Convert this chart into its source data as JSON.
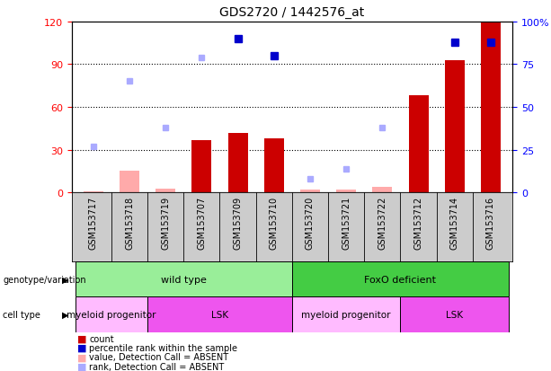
{
  "title": "GDS2720 / 1442576_at",
  "samples": [
    "GSM153717",
    "GSM153718",
    "GSM153719",
    "GSM153707",
    "GSM153709",
    "GSM153710",
    "GSM153720",
    "GSM153721",
    "GSM153722",
    "GSM153712",
    "GSM153714",
    "GSM153716"
  ],
  "count_values": [
    null,
    null,
    null,
    37,
    42,
    38,
    null,
    null,
    null,
    68,
    93,
    120
  ],
  "count_absent": [
    1,
    15,
    3,
    null,
    null,
    null,
    2,
    2,
    4,
    null,
    null,
    null
  ],
  "rank_values": [
    null,
    null,
    null,
    null,
    90,
    80,
    null,
    null,
    null,
    null,
    88,
    88
  ],
  "rank_absent": [
    27,
    65,
    38,
    79,
    null,
    null,
    8,
    14,
    38,
    null,
    null,
    null
  ],
  "ylim_left": [
    0,
    120
  ],
  "ylim_right": [
    0,
    100
  ],
  "yticks_left": [
    0,
    30,
    60,
    90,
    120
  ],
  "yticks_right": [
    0,
    25,
    50,
    75,
    100
  ],
  "yticklabels_left": [
    "0",
    "30",
    "60",
    "90",
    "120"
  ],
  "yticklabels_right": [
    "0",
    "25",
    "50",
    "75",
    "100%"
  ],
  "bar_color": "#cc0000",
  "bar_absent_color": "#ffaaaa",
  "rank_color": "#0000cc",
  "rank_absent_color": "#aaaaff",
  "genotype_groups": [
    {
      "label": "wild type",
      "start": 0,
      "end": 5,
      "color": "#99ee99"
    },
    {
      "label": "FoxO deficient",
      "start": 6,
      "end": 11,
      "color": "#44cc44"
    }
  ],
  "celltype_groups": [
    {
      "label": "myeloid progenitor",
      "start": 0,
      "end": 1,
      "color": "#ffbbff"
    },
    {
      "label": "LSK",
      "start": 2,
      "end": 5,
      "color": "#ee55ee"
    },
    {
      "label": "myeloid progenitor",
      "start": 6,
      "end": 8,
      "color": "#ffbbff"
    },
    {
      "label": "LSK",
      "start": 9,
      "end": 11,
      "color": "#ee55ee"
    }
  ],
  "legend_items": [
    {
      "color": "#cc0000",
      "label": "count"
    },
    {
      "color": "#0000cc",
      "label": "percentile rank within the sample"
    },
    {
      "color": "#ffaaaa",
      "label": "value, Detection Call = ABSENT"
    },
    {
      "color": "#aaaaff",
      "label": "rank, Detection Call = ABSENT"
    }
  ],
  "xtick_bg": "#cccccc",
  "grid_color": "#000000",
  "grid_linestyle": "dotted",
  "grid_linewidth": 0.8
}
